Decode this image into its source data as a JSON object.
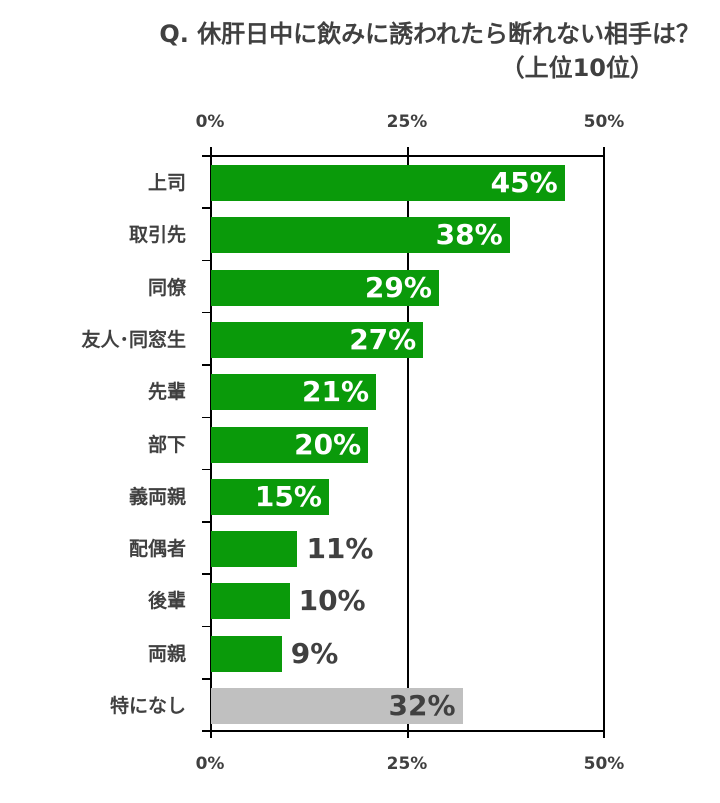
{
  "title": {
    "line1": "Q. 休肝日中に飲みに誘われたら断れない相手は？",
    "line2": "（上位10位）"
  },
  "axis": {
    "ticks": [
      "0%",
      "25%",
      "50%"
    ]
  },
  "colors": {
    "bar_primary": "#0a9a0a",
    "bar_none": "#c0c0c0",
    "text": "#404040",
    "label_inside": "#ffffff"
  },
  "bars": [
    {
      "label": "上司",
      "value": 45,
      "text": "45%"
    },
    {
      "label": "取引先",
      "value": 38,
      "text": "38%"
    },
    {
      "label": "同僚",
      "value": 29,
      "text": "29%"
    },
    {
      "label": "友人･同窓生",
      "value": 27,
      "text": "27%"
    },
    {
      "label": "先輩",
      "value": 21,
      "text": "21%"
    },
    {
      "label": "部下",
      "value": 20,
      "text": "20%"
    },
    {
      "label": "義両親",
      "value": 15,
      "text": "15%"
    },
    {
      "label": "配偶者",
      "value": 11,
      "text": "11%"
    },
    {
      "label": "後輩",
      "value": 10,
      "text": "10%"
    },
    {
      "label": "両親",
      "value": 9,
      "text": "9%"
    },
    {
      "label": "特になし",
      "value": 32,
      "text": "32%"
    }
  ],
  "chart_data": {
    "type": "bar",
    "orientation": "horizontal",
    "title": "Q. 休肝日中に飲みに誘われたら断れない相手は？（上位10位）",
    "categories": [
      "上司",
      "取引先",
      "同僚",
      "友人･同窓生",
      "先輩",
      "部下",
      "義両親",
      "配偶者",
      "後輩",
      "両親",
      "特になし"
    ],
    "values": [
      45,
      38,
      29,
      27,
      21,
      20,
      15,
      11,
      10,
      9,
      32
    ],
    "unit": "%",
    "xlabel": "",
    "ylabel": "",
    "xlim": [
      0,
      50
    ],
    "xticks": [
      "0%",
      "25%",
      "50%"
    ],
    "grid": "vertical lines at 25% and 50%",
    "legend": "none",
    "highlight": {
      "特になし": "gray"
    }
  }
}
